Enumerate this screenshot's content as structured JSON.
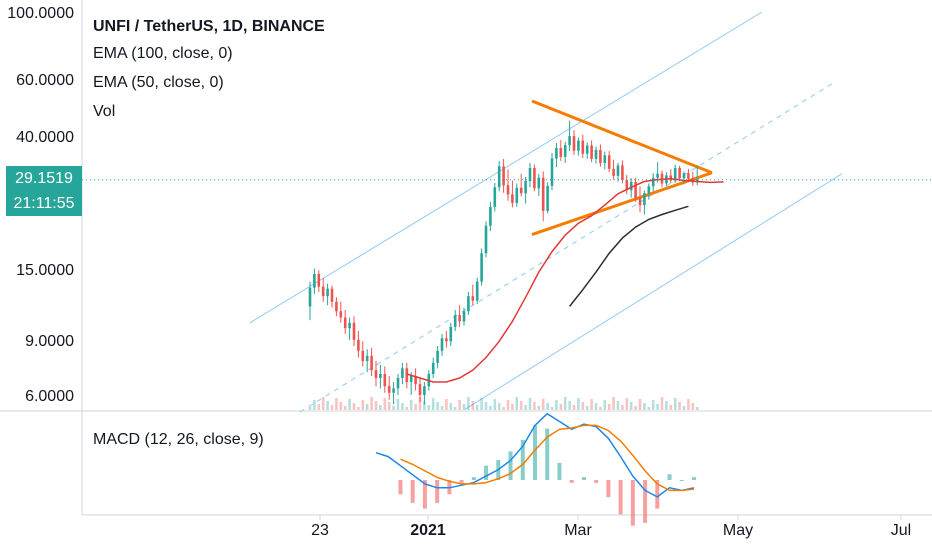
{
  "legend": {
    "title": "UNFI / TetherUS, 1D, BINANCE",
    "ema100": "EMA (100, close, 0)",
    "ema50": "EMA (50, close, 0)",
    "vol": "Vol"
  },
  "macd_label": "MACD (12, 26, close, 9)",
  "last_price": {
    "price": "29.1519",
    "countdown": "21:11:55"
  },
  "colors": {
    "up": "#26a69a",
    "down": "#ef5350",
    "ema50": "#e53935",
    "ema100": "#2a2e39",
    "channel": "#90caf9",
    "triangle": "#f57c00",
    "macd": "#1e88e5",
    "signal": "#f57c00"
  },
  "chart_data": [
    {
      "type": "candlestick",
      "title": "UNFI / TetherUS, 1D, BINANCE",
      "scale": "log",
      "ylim": [
        5.3,
        100
      ],
      "y_ticks": [
        "100.0000",
        "60.0000",
        "40.0000",
        "15.0000",
        "9.0000",
        "6.0000"
      ],
      "x_ticks": [
        "23",
        "2021",
        "Mar",
        "May",
        "Jul"
      ],
      "last_price": 29.1519,
      "ohlc_daily_approx": [
        [
          11.5,
          13.8,
          10.4,
          13.2
        ],
        [
          13.2,
          15.2,
          12.6,
          14.6
        ],
        [
          14.6,
          15.0,
          12.8,
          13.3
        ],
        [
          13.3,
          14.2,
          11.9,
          12.4
        ],
        [
          12.4,
          13.6,
          11.6,
          13.1
        ],
        [
          13.1,
          13.4,
          11.4,
          11.9
        ],
        [
          11.9,
          12.3,
          10.7,
          11.1
        ],
        [
          11.1,
          11.9,
          10.2,
          10.6
        ],
        [
          10.6,
          11.2,
          9.4,
          9.8
        ],
        [
          9.8,
          10.6,
          9.0,
          10.2
        ],
        [
          10.2,
          10.7,
          8.6,
          9.0
        ],
        [
          9.0,
          9.6,
          7.9,
          8.3
        ],
        [
          8.3,
          8.9,
          7.4,
          7.7
        ],
        [
          7.7,
          8.4,
          7.1,
          8.0
        ],
        [
          8.0,
          8.5,
          6.9,
          7.2
        ],
        [
          7.2,
          7.7,
          6.4,
          6.8
        ],
        [
          6.8,
          7.5,
          6.3,
          7.0
        ],
        [
          7.0,
          7.4,
          6.1,
          6.4
        ],
        [
          6.4,
          6.9,
          5.8,
          6.1
        ],
        [
          6.1,
          6.6,
          5.6,
          6.3
        ],
        [
          6.3,
          7.0,
          6.0,
          6.8
        ],
        [
          6.8,
          7.6,
          6.5,
          7.3
        ],
        [
          7.3,
          7.6,
          6.3,
          6.6
        ],
        [
          6.6,
          7.1,
          6.0,
          6.9
        ],
        [
          6.9,
          7.3,
          6.2,
          6.5
        ],
        [
          6.5,
          6.8,
          5.7,
          6.0
        ],
        [
          6.0,
          6.6,
          5.6,
          6.4
        ],
        [
          6.4,
          7.2,
          6.2,
          7.0
        ],
        [
          7.0,
          7.9,
          6.8,
          7.6
        ],
        [
          7.6,
          8.6,
          7.3,
          8.3
        ],
        [
          8.3,
          9.4,
          8.0,
          9.1
        ],
        [
          9.1,
          9.6,
          8.5,
          8.9
        ],
        [
          8.9,
          10.2,
          8.6,
          9.9
        ],
        [
          9.9,
          11.2,
          9.6,
          10.8
        ],
        [
          10.8,
          11.6,
          9.9,
          10.3
        ],
        [
          10.3,
          11.4,
          10.0,
          11.1
        ],
        [
          11.1,
          12.8,
          10.8,
          12.4
        ],
        [
          12.4,
          13.5,
          11.6,
          12.0
        ],
        [
          12.0,
          14.2,
          11.7,
          13.8
        ],
        [
          13.8,
          17.6,
          13.4,
          17.0
        ],
        [
          17.0,
          21.5,
          16.5,
          20.8
        ],
        [
          20.8,
          24.8,
          20.0,
          23.9
        ],
        [
          23.9,
          28.5,
          23.1,
          27.6
        ],
        [
          27.6,
          33.5,
          26.8,
          32.2
        ],
        [
          32.2,
          34.0,
          26.5,
          28.0
        ],
        [
          28.0,
          31.5,
          25.0,
          26.2
        ],
        [
          26.2,
          29.0,
          23.8,
          24.6
        ],
        [
          24.6,
          28.4,
          23.9,
          27.5
        ],
        [
          27.5,
          30.5,
          25.8,
          26.4
        ],
        [
          26.4,
          29.8,
          24.5,
          28.9
        ],
        [
          28.9,
          33.0,
          27.6,
          31.8
        ],
        [
          31.8,
          32.6,
          26.8,
          27.4
        ],
        [
          27.4,
          30.4,
          25.9,
          29.6
        ],
        [
          29.6,
          31.0,
          21.5,
          23.2
        ],
        [
          23.2,
          28.6,
          22.8,
          27.9
        ],
        [
          27.9,
          35.5,
          27.0,
          34.1
        ],
        [
          34.1,
          38.2,
          32.0,
          36.8
        ],
        [
          36.8,
          39.0,
          33.5,
          34.5
        ],
        [
          34.5,
          38.5,
          33.0,
          37.6
        ],
        [
          37.6,
          45.0,
          36.0,
          40.2
        ],
        [
          40.2,
          42.0,
          35.0,
          36.1
        ],
        [
          36.1,
          39.8,
          34.8,
          38.9
        ],
        [
          38.9,
          40.6,
          34.2,
          35.3
        ],
        [
          35.3,
          38.4,
          34.0,
          37.5
        ],
        [
          37.5,
          38.9,
          33.2,
          34.0
        ],
        [
          34.0,
          37.2,
          32.8,
          36.3
        ],
        [
          36.3,
          37.8,
          32.1,
          33.0
        ],
        [
          33.0,
          35.9,
          31.5,
          34.9
        ],
        [
          34.9,
          36.0,
          30.8,
          31.6
        ],
        [
          31.6,
          33.8,
          29.2,
          30.0
        ],
        [
          30.0,
          33.0,
          28.8,
          32.4
        ],
        [
          32.4,
          33.6,
          28.4,
          29.1
        ],
        [
          29.1,
          30.2,
          26.2,
          27.0
        ],
        [
          27.0,
          29.5,
          25.6,
          28.7
        ],
        [
          28.7,
          29.6,
          24.8,
          25.5
        ],
        [
          25.5,
          27.8,
          23.0,
          24.2
        ],
        [
          24.2,
          26.9,
          22.6,
          26.4
        ],
        [
          26.4,
          28.4,
          25.2,
          27.8
        ],
        [
          27.8,
          30.6,
          26.8,
          29.6
        ],
        [
          29.6,
          33.2,
          28.6,
          30.5
        ],
        [
          30.5,
          31.2,
          27.6,
          28.4
        ],
        [
          28.4,
          30.8,
          27.8,
          30.1
        ],
        [
          30.1,
          31.5,
          28.4,
          29.0
        ],
        [
          29.0,
          32.6,
          28.5,
          31.8
        ],
        [
          31.8,
          32.3,
          28.9,
          29.5
        ],
        [
          29.5,
          31.0,
          28.2,
          30.6
        ],
        [
          30.6,
          31.6,
          28.8,
          29.4
        ],
        [
          29.4,
          30.9,
          27.9,
          28.6
        ],
        [
          28.6,
          32.4,
          28.0,
          29.2
        ]
      ],
      "ema50_approx": [
        7.0,
        6.8,
        6.6,
        6.6,
        6.8,
        7.2,
        7.9,
        8.9,
        10.3,
        12.3,
        14.8,
        17.2,
        19.4,
        21.2,
        22.4,
        24.2,
        26.3,
        27.6,
        28.8,
        29.2,
        29.4,
        29.0,
        28.8,
        28.6,
        28.7
      ],
      "ema100_approx": [
        11.5,
        13.0,
        14.8,
        17.0,
        19.0,
        20.6,
        21.8,
        22.6,
        23.3,
        24.0
      ],
      "channel": {
        "upper": [
          [
            10.2,
            100.0
          ]
        ],
        "lower": "parallel",
        "midline": "dashed"
      },
      "triangle": {
        "apex": 30.7,
        "start_high": 52.0,
        "start_low": 19.5
      }
    },
    {
      "type": "histogram",
      "title": "MACD (12, 26, close, 9)",
      "series": [
        {
          "name": "MACD",
          "values": [
            2.1,
            1.8,
            1.1,
            0.4,
            -0.3,
            -0.6,
            -0.6,
            -0.4,
            -0.2,
            0.3,
            0.8,
            1.5,
            2.6,
            4.2,
            5.1,
            4.5,
            3.9,
            4.3,
            4.1,
            3.2,
            1.8,
            0.3,
            -0.8,
            -1.3,
            -0.6,
            -0.8,
            -0.6
          ]
        },
        {
          "name": "Signal",
          "values": [
            null,
            null,
            1.6,
            1.2,
            0.7,
            0.2,
            -0.1,
            -0.3,
            -0.3,
            -0.2,
            0.1,
            0.5,
            1.2,
            2.3,
            3.3,
            3.9,
            4.0,
            4.2,
            4.2,
            3.8,
            3.0,
            1.9,
            0.7,
            -0.3,
            -0.8,
            -0.8,
            -0.7
          ]
        }
      ]
    }
  ]
}
